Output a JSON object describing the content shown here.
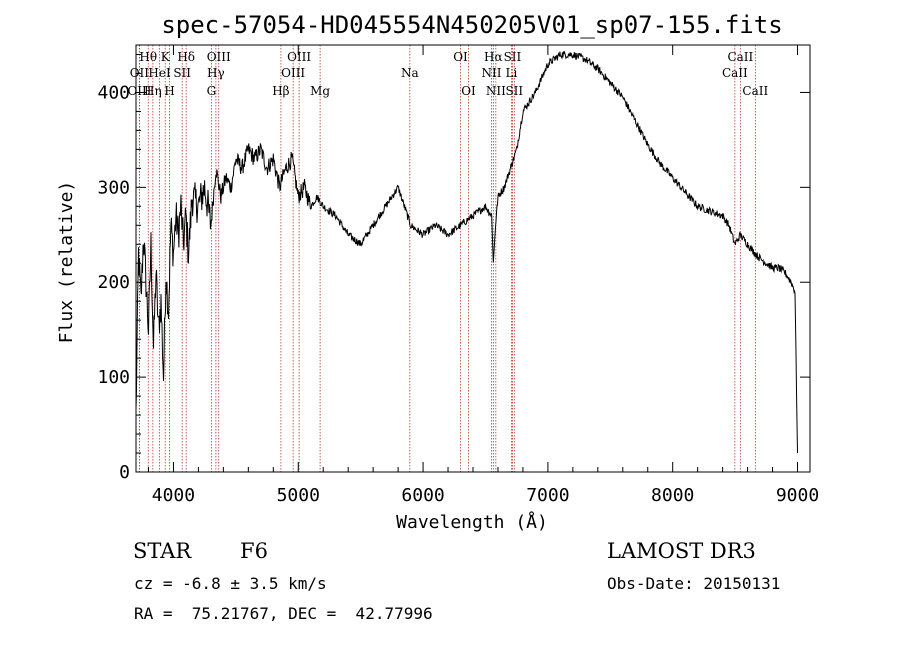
{
  "chart_data": {
    "type": "line",
    "title": "spec-57054-HD045554N450205V01_sp07-155.fits",
    "xlabel": "Wavelength (Å)",
    "ylabel": "Flux (relative)",
    "xlim": [
      3700,
      9100
    ],
    "ylim": [
      0,
      450
    ],
    "xticks": [
      4000,
      5000,
      6000,
      7000,
      8000,
      9000
    ],
    "yticks": [
      0,
      100,
      200,
      300,
      400
    ],
    "series": [
      {
        "name": "flux",
        "x": [
          3700,
          3720,
          3740,
          3760,
          3780,
          3800,
          3820,
          3840,
          3860,
          3880,
          3900,
          3920,
          3940,
          3960,
          3980,
          4000,
          4020,
          4040,
          4060,
          4080,
          4100,
          4120,
          4150,
          4200,
          4250,
          4300,
          4340,
          4380,
          4420,
          4460,
          4500,
          4550,
          4600,
          4650,
          4700,
          4750,
          4800,
          4850,
          4900,
          4950,
          5000,
          5050,
          5100,
          5150,
          5200,
          5300,
          5400,
          5500,
          5600,
          5700,
          5800,
          5900,
          6000,
          6100,
          6200,
          6300,
          6400,
          6500,
          6550,
          6563,
          6580,
          6600,
          6650,
          6700,
          6750,
          6800,
          6900,
          7000,
          7100,
          7200,
          7300,
          7400,
          7500,
          7600,
          7700,
          7800,
          7900,
          8000,
          8100,
          8200,
          8300,
          8400,
          8450,
          8498,
          8542,
          8600,
          8662,
          8700,
          8800,
          8850,
          8900,
          8950,
          8980,
          9000
        ],
        "y": [
          60,
          230,
          180,
          250,
          200,
          150,
          240,
          130,
          210,
          150,
          180,
          100,
          210,
          170,
          260,
          230,
          270,
          250,
          280,
          240,
          270,
          230,
          290,
          280,
          300,
          260,
          320,
          290,
          310,
          300,
          330,
          320,
          340,
          330,
          340,
          320,
          330,
          300,
          320,
          330,
          290,
          300,
          280,
          290,
          280,
          270,
          250,
          240,
          260,
          280,
          300,
          260,
          250,
          260,
          250,
          260,
          270,
          280,
          270,
          220,
          260,
          290,
          300,
          320,
          340,
          380,
          400,
          430,
          440,
          440,
          435,
          425,
          410,
          395,
          370,
          345,
          325,
          310,
          295,
          280,
          275,
          270,
          260,
          240,
          250,
          240,
          230,
          225,
          215,
          215,
          210,
          200,
          190,
          20
        ]
      }
    ],
    "spectral_lines": [
      {
        "label": "Hθ",
        "x": 3798,
        "row": 1
      },
      {
        "label": "OII",
        "x": 3727,
        "row": 2
      },
      {
        "label": "OIII",
        "x": 3728,
        "row": 3
      },
      {
        "label": "Hη",
        "x": 3835,
        "row": 3
      },
      {
        "label": "K",
        "x": 3934,
        "row": 1
      },
      {
        "label": "HeI",
        "x": 3889,
        "row": 2
      },
      {
        "label": "H",
        "x": 3969,
        "row": 3
      },
      {
        "label": "SII",
        "x": 4070,
        "row": 2
      },
      {
        "label": "Hδ",
        "x": 4102,
        "row": 1
      },
      {
        "label": "OIII",
        "x": 4363,
        "row": 1
      },
      {
        "label": "Hγ",
        "x": 4340,
        "row": 2
      },
      {
        "label": "G",
        "x": 4304,
        "row": 3
      },
      {
        "label": "Hβ",
        "x": 4861,
        "row": 3
      },
      {
        "label": "OIII",
        "x": 4959,
        "row": 2
      },
      {
        "label": "OIII",
        "x": 5007,
        "row": 1
      },
      {
        "label": "Mg",
        "x": 5175,
        "row": 3
      },
      {
        "label": "Na",
        "x": 5894,
        "row": 2
      },
      {
        "label": "OI",
        "x": 6300,
        "row": 1
      },
      {
        "label": "OI",
        "x": 6364,
        "row": 3
      },
      {
        "label": "NII",
        "x": 6548,
        "row": 2
      },
      {
        "label": "Hα",
        "x": 6563,
        "row": 1
      },
      {
        "label": "NII",
        "x": 6583,
        "row": 3
      },
      {
        "label": "SII",
        "x": 6716,
        "row": 1
      },
      {
        "label": "Li",
        "x": 6708,
        "row": 2
      },
      {
        "label": "SII",
        "x": 6731,
        "row": 3
      },
      {
        "label": "CaII",
        "x": 8498,
        "row": 2
      },
      {
        "label": "CaII",
        "x": 8542,
        "row": 1
      },
      {
        "label": "CaII",
        "x": 8662,
        "row": 3
      }
    ]
  },
  "info": {
    "object_class": "STAR",
    "subclass": "F6",
    "survey": "LAMOST DR3",
    "cz": "cz = -6.8 ± 3.5 km/s",
    "obs_date": "Obs-Date: 20150131",
    "coords": "RA =  75.21767, DEC =  42.77996"
  },
  "colors": {
    "line_marker": "#c0392b",
    "spectrum": "#000000"
  }
}
